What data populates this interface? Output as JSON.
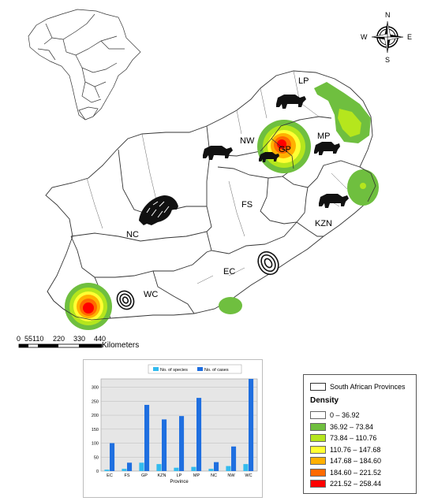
{
  "map": {
    "provinces": [
      "LP",
      "NW",
      "GP",
      "MP",
      "FS",
      "KZN",
      "NC",
      "EC",
      "WC"
    ],
    "compass": {
      "n": "N",
      "s": "S",
      "e": "E",
      "w": "W"
    },
    "scale": {
      "ticks": [
        "0",
        "55110",
        "220",
        "330",
        "440"
      ],
      "unit": "Kilometers"
    },
    "colors": {
      "border": "#333333",
      "class1": "#ffffff",
      "class2": "#6fbf3f",
      "class3": "#b5e61d",
      "class4": "#ffff33",
      "class5": "#ffb000",
      "class6": "#ff6a00",
      "class7": "#ff0000"
    }
  },
  "legend": {
    "provinces_label": "South African Provinces",
    "title": "Density",
    "classes": [
      {
        "label": "0 – 36.92",
        "color": "#ffffff"
      },
      {
        "label": "36.92 – 73.84",
        "color": "#6fbf3f"
      },
      {
        "label": "73.84 – 110.76",
        "color": "#b5e61d"
      },
      {
        "label": "110.76 – 147.68",
        "color": "#ffff33"
      },
      {
        "label": "147.68 – 184.60",
        "color": "#ffb000"
      },
      {
        "label": "184.60 – 221.52",
        "color": "#ff6a00"
      },
      {
        "label": "221.52 – 258.44",
        "color": "#ff0000"
      }
    ]
  },
  "chart_data": {
    "type": "bar",
    "categories": [
      "EC",
      "FS",
      "GP",
      "KZN",
      "LP",
      "MP",
      "NC",
      "NW",
      "WC"
    ],
    "series": [
      {
        "name": "No. of species",
        "values": [
          5,
          8,
          30,
          25,
          12,
          15,
          8,
          18,
          25
        ],
        "color": "#33bbee"
      },
      {
        "name": "No. of cases",
        "values": [
          100,
          30,
          237,
          185,
          197,
          262,
          32,
          88,
          330
        ],
        "color": "#1f6fe0"
      }
    ],
    "xlabel": "Province",
    "ylabel": "",
    "ylim": [
      0,
      330
    ],
    "yticks": [
      0,
      50,
      100,
      150,
      200,
      250,
      300
    ],
    "grid": true,
    "legend_position": "top"
  }
}
